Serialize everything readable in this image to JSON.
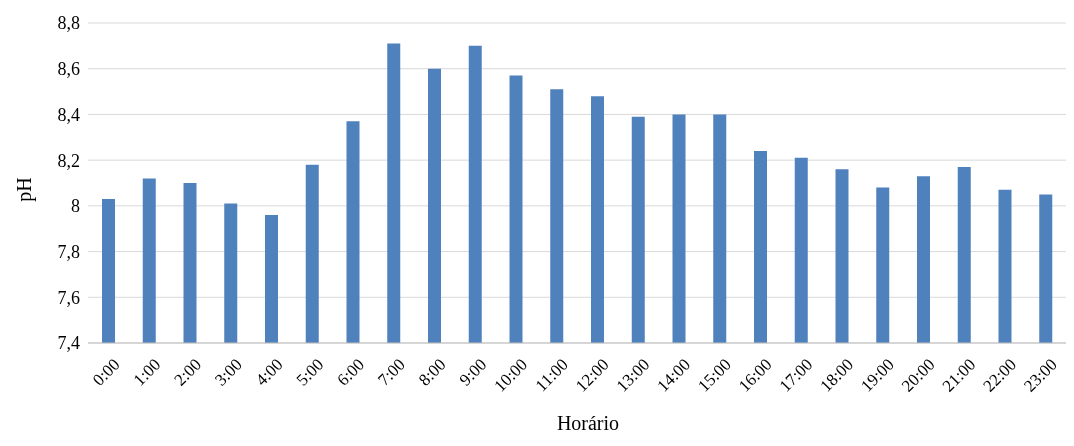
{
  "chart_data": {
    "type": "bar",
    "xlabel": "Horário",
    "ylabel": "pH",
    "categories": [
      "0:00",
      "1:00",
      "2:00",
      "3:00",
      "4:00",
      "5:00",
      "6:00",
      "7:00",
      "8:00",
      "9:00",
      "10:00",
      "11:00",
      "12:00",
      "13:00",
      "14:00",
      "15:00",
      "16:00",
      "17:00",
      "18:00",
      "19:00",
      "20:00",
      "21:00",
      "22:00",
      "23:00"
    ],
    "values": [
      8.03,
      8.12,
      8.1,
      8.01,
      7.96,
      8.18,
      8.37,
      8.71,
      8.6,
      8.7,
      8.57,
      8.51,
      8.48,
      8.39,
      8.4,
      8.4,
      8.24,
      8.21,
      8.16,
      8.08,
      8.13,
      8.17,
      8.07,
      8.05
    ],
    "color": "#4f81bd",
    "ylim": [
      7.4,
      8.8
    ],
    "yticks": [
      {
        "value": 7.4,
        "label": "7,4"
      },
      {
        "value": 7.6,
        "label": "7,6"
      },
      {
        "value": 7.8,
        "label": "7,8"
      },
      8,
      {
        "value": 8.2,
        "label": "8,2"
      },
      {
        "value": 8.4,
        "label": "8,4"
      },
      {
        "value": 8.6,
        "label": "8,6"
      },
      {
        "value": 8.8,
        "label": "8,8"
      }
    ],
    "grid": "y",
    "legend": false
  }
}
